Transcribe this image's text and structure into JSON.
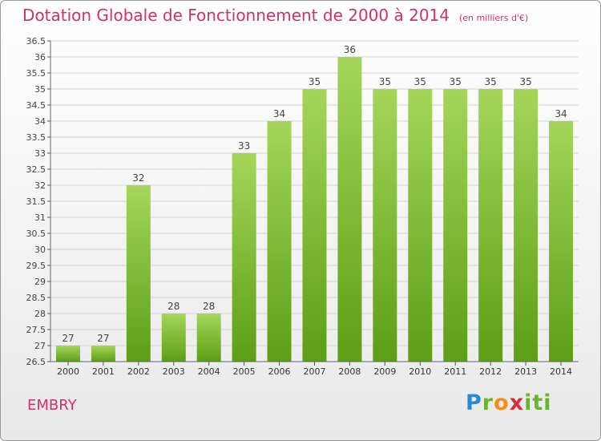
{
  "header": {
    "title": "Dotation Globale de Fonctionnement de 2000 à 2014",
    "unit": "(en milliers d'€)"
  },
  "footer": {
    "commune": "EMBRY",
    "logo": "Proxiti"
  },
  "colors": {
    "title": "#d0306a",
    "bar_top": "#a4d65a",
    "bar_bottom": "#5d9e16",
    "grid": "#d4d4d4"
  },
  "chart_data": {
    "type": "bar",
    "title": "Dotation Globale de Fonctionnement de 2000 à 2014",
    "subtitle": "(en milliers d'€)",
    "xlabel": "",
    "ylabel": "",
    "categories": [
      "2000",
      "2001",
      "2002",
      "2003",
      "2004",
      "2005",
      "2006",
      "2007",
      "2008",
      "2009",
      "2010",
      "2011",
      "2012",
      "2013",
      "2014"
    ],
    "values": [
      27,
      27,
      32,
      28,
      28,
      33,
      34,
      35,
      36,
      35,
      35,
      35,
      35,
      35,
      34
    ],
    "ylim": [
      26.5,
      36.5
    ],
    "yticks": [
      "26.5",
      "27",
      "27.5",
      "28",
      "28.5",
      "29",
      "29.5",
      "30",
      "30.5",
      "31",
      "31.5",
      "32",
      "32.5",
      "33",
      "33.5",
      "34",
      "34.5",
      "35",
      "35.5",
      "36",
      "36.5"
    ],
    "grid": true,
    "legend": "none"
  }
}
